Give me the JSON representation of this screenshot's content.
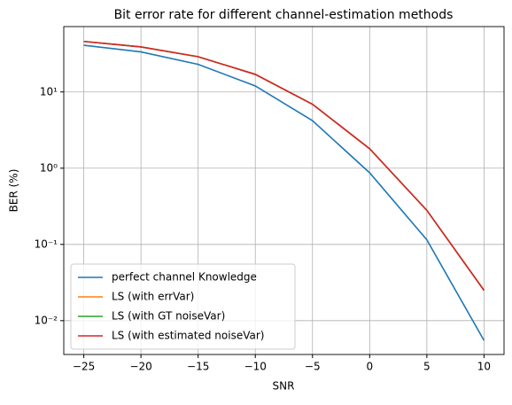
{
  "chart_data": {
    "type": "line",
    "title": "Bit error rate for different channel-estimation methods",
    "x_label": "SNR",
    "y_label": "BER (%)",
    "x": [
      -25,
      -20,
      -15,
      -10,
      -5,
      0,
      5,
      10
    ],
    "series": [
      {
        "name": "perfect channel Knowledge",
        "color": "#1f77b4",
        "values": [
          41,
          33.5,
          23,
          12,
          4.2,
          0.87,
          0.115,
          0.0055
        ]
      },
      {
        "name": "LS (with errVar)",
        "color": "#ff7f0e",
        "values": [
          46,
          39,
          29,
          17,
          6.9,
          1.8,
          0.28,
          0.025
        ]
      },
      {
        "name": "LS (with GT noiseVar)",
        "color": "#2ca02c",
        "values": [
          46,
          39,
          29,
          17,
          6.9,
          1.8,
          0.28,
          0.025
        ]
      },
      {
        "name": "LS (with estimated noiseVar)",
        "color": "#d62728",
        "values": [
          46,
          39,
          29,
          17,
          6.9,
          1.8,
          0.28,
          0.025
        ]
      }
    ],
    "xlim": [
      -26.75,
      11.75
    ],
    "xticks": [
      {
        "value": -25,
        "label": "−25"
      },
      {
        "value": -20,
        "label": "−20"
      },
      {
        "value": -15,
        "label": "−15"
      },
      {
        "value": -10,
        "label": "−10"
      },
      {
        "value": -5,
        "label": "−5"
      },
      0,
      5,
      10
    ],
    "ylim": [
      0.0036,
      72
    ],
    "yticks": [
      {
        "value": 0.01,
        "label": "10⁻²"
      },
      {
        "value": 0.1,
        "label": "10⁻¹"
      },
      {
        "value": 1,
        "label": "10⁰"
      },
      {
        "value": 10,
        "label": "10¹"
      }
    ],
    "y_scale": "log",
    "grid": true,
    "legend": "lower left"
  }
}
